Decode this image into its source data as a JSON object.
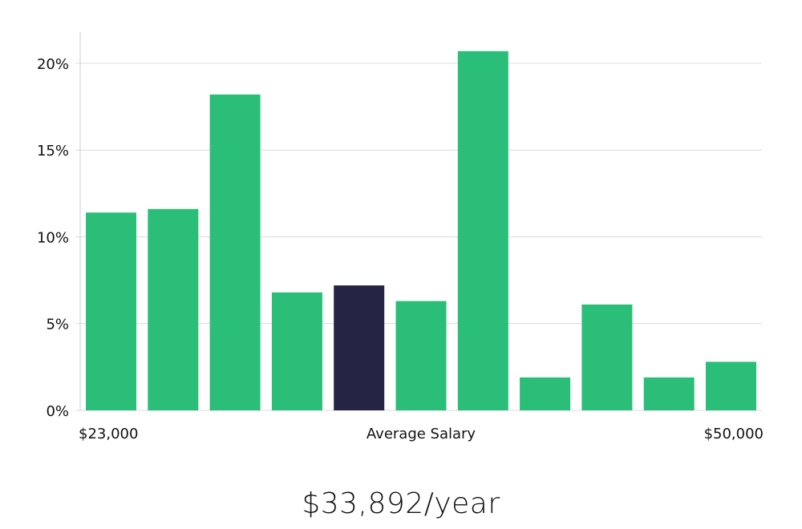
{
  "chart_data": {
    "type": "bar",
    "title": "",
    "xlabel": "Average Salary",
    "ylabel": "",
    "x_range_labels": {
      "min": "$23,000",
      "max": "$50,000"
    },
    "y_ticks": [
      "0%",
      "5%",
      "10%",
      "15%",
      "20%"
    ],
    "y_tick_values": [
      0,
      5,
      10,
      15,
      20
    ],
    "ylim": [
      0,
      21.8
    ],
    "values": [
      11.4,
      11.6,
      18.2,
      6.8,
      7.2,
      6.3,
      20.7,
      1.9,
      6.1,
      1.9,
      2.8
    ],
    "highlight_index": 4,
    "colors": {
      "bar": "#2abe78",
      "highlight": "#262444",
      "grid": "#dcdcdc",
      "axis": "#cccccc"
    }
  },
  "salary_display": "$33,892/year"
}
